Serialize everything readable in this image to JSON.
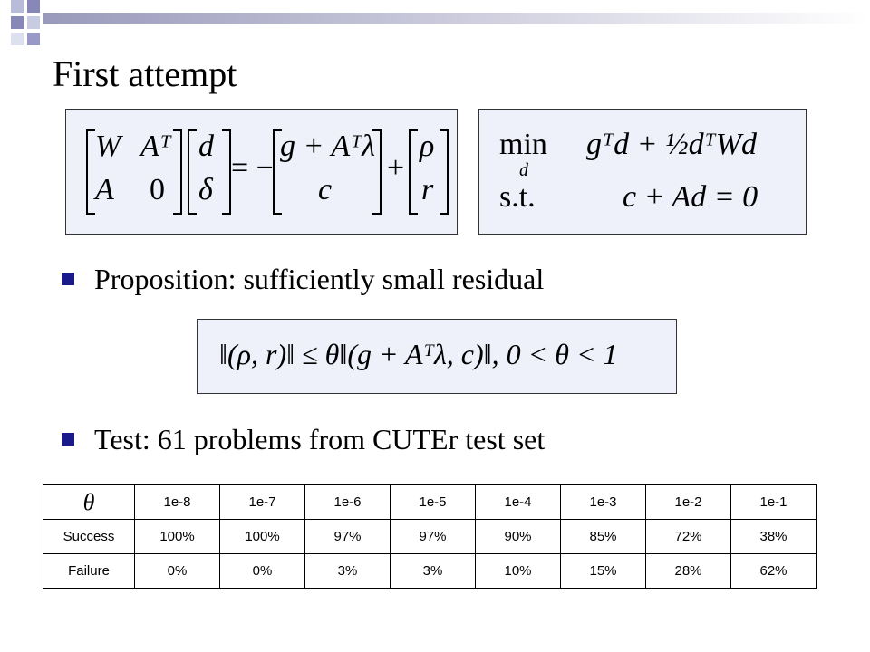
{
  "title": "First attempt",
  "equations": {
    "kkt": {
      "m11": "W",
      "m12": "Aᵀ",
      "m21": "A",
      "m22": "0",
      "v1": "d",
      "v2": "δ",
      "eq": "= −",
      "r1": "g + Aᵀλ",
      "r2": "c",
      "plus": "+",
      "p1": "ρ",
      "p2": "r"
    },
    "qp": {
      "op": "min",
      "sub": "d",
      "obj": "gᵀd + ½dᵀWd",
      "st": "s.t.",
      "con": "c + Ad = 0"
    },
    "residual": "‖(ρ, r)‖ ≤ θ‖(g + Aᵀλ, c)‖, 0 < θ < 1"
  },
  "bullets": [
    "Proposition: sufficiently small residual",
    "Test: 61 problems from CUTEr test set"
  ],
  "table": {
    "header": [
      "θ",
      "1e-8",
      "1e-7",
      "1e-6",
      "1e-5",
      "1e-4",
      "1e-3",
      "1e-2",
      "1e-1"
    ],
    "rows": [
      [
        "Success",
        "100%",
        "100%",
        "97%",
        "97%",
        "90%",
        "85%",
        "72%",
        "38%"
      ],
      [
        "Failure",
        "0%",
        "0%",
        "3%",
        "3%",
        "10%",
        "15%",
        "28%",
        "62%"
      ]
    ]
  }
}
